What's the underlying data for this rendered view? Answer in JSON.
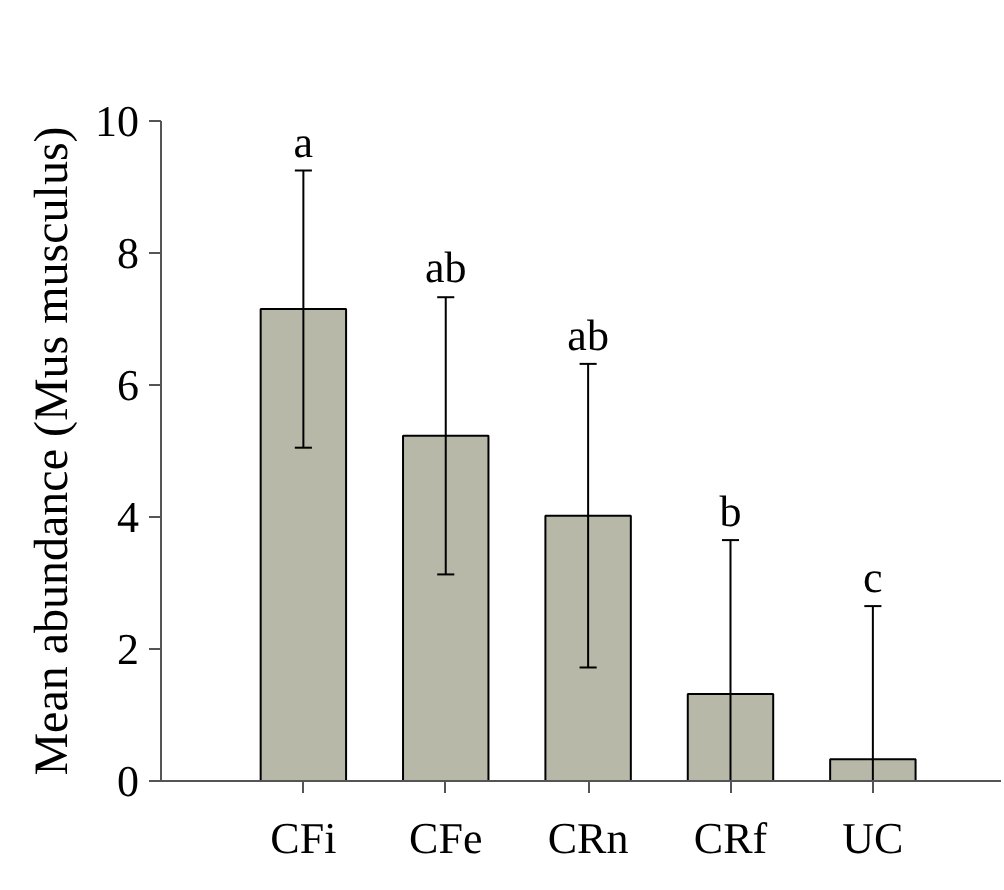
{
  "chart_data": {
    "type": "bar",
    "ylabel": "Mean abundance (Mus musculus)",
    "categories": [
      "CFi",
      "CFe",
      "CRn",
      "CRf",
      "UC"
    ],
    "values": [
      7.15,
      5.23,
      4.02,
      1.32,
      0.33
    ],
    "errors": [
      2.1,
      2.1,
      2.3,
      [
        0,
        3.65
      ],
      [
        0,
        2.65
      ]
    ],
    "color": "#b8b8a8",
    "ylim": [
      0,
      10
    ],
    "yticks": [
      0,
      2,
      4,
      6,
      8,
      10
    ],
    "grid": false,
    "annotations": [
      {
        "text": "a",
        "x": "CFi",
        "y": 9.25
      },
      {
        "text": "ab",
        "x": "CFe",
        "y": 7.35
      },
      {
        "text": "ab",
        "x": "CRn",
        "y": 6.32
      },
      {
        "text": "b",
        "x": "CRf",
        "y": 3.65
      },
      {
        "text": "c",
        "x": "UC",
        "y": 2.65
      }
    ]
  }
}
